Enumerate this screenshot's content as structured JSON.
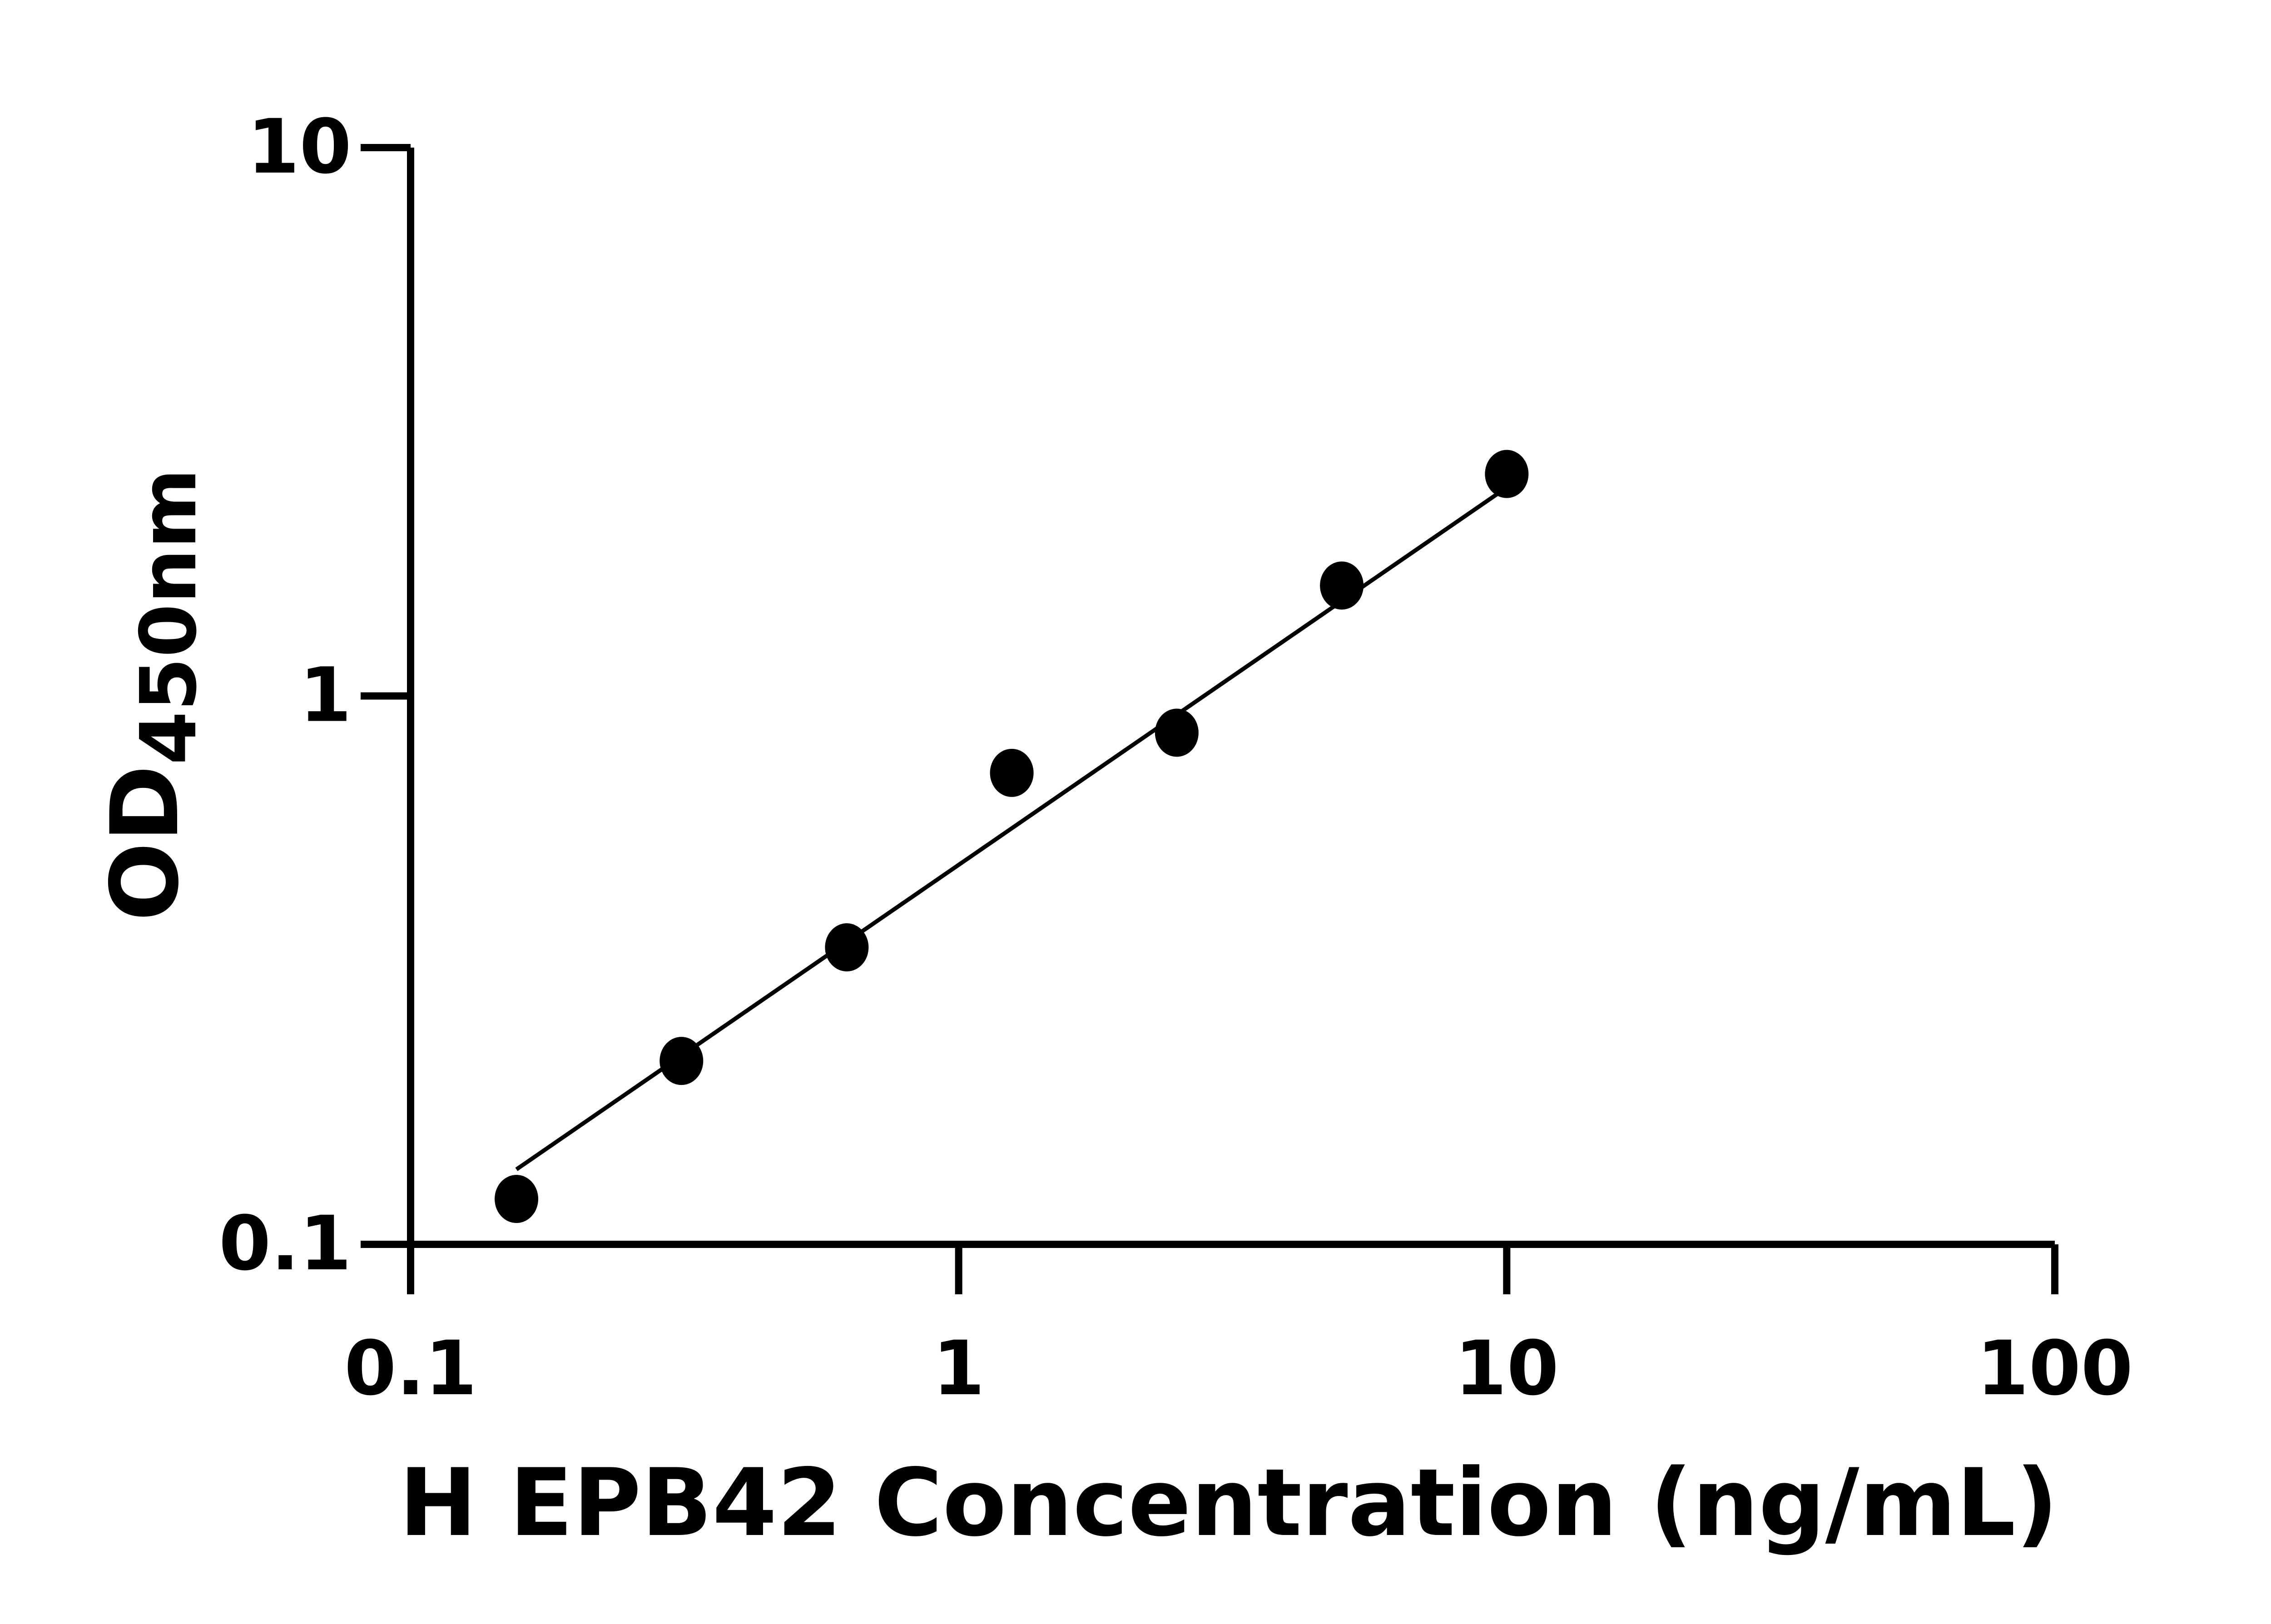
{
  "chart_data": {
    "type": "scatter",
    "title": "",
    "xlabel": "H EPB42 Concentration (ng/mL)",
    "ylabel_main": "OD",
    "ylabel_sub": "450nm",
    "x_scale": "log",
    "y_scale": "log",
    "xlim": [
      0.1,
      100
    ],
    "ylim": [
      0.1,
      10
    ],
    "x_ticks": [
      {
        "value": 0.1,
        "label": "0.1"
      },
      {
        "value": 1,
        "label": "1"
      },
      {
        "value": 10,
        "label": "10"
      },
      {
        "value": 100,
        "label": "100"
      }
    ],
    "y_ticks": [
      {
        "value": 0.1,
        "label": "0.1"
      },
      {
        "value": 1,
        "label": "1"
      },
      {
        "value": 10,
        "label": "10"
      }
    ],
    "grid": false,
    "points": [
      {
        "x": 0.156,
        "y": 0.121
      },
      {
        "x": 0.312,
        "y": 0.216
      },
      {
        "x": 0.625,
        "y": 0.348
      },
      {
        "x": 1.25,
        "y": 0.724
      },
      {
        "x": 2.5,
        "y": 0.857
      },
      {
        "x": 5,
        "y": 1.59
      },
      {
        "x": 10,
        "y": 2.54
      }
    ],
    "fit_line": [
      {
        "x": 0.156,
        "y": 0.137
      },
      {
        "x": 10,
        "y": 2.4
      }
    ],
    "color": "#000000"
  }
}
